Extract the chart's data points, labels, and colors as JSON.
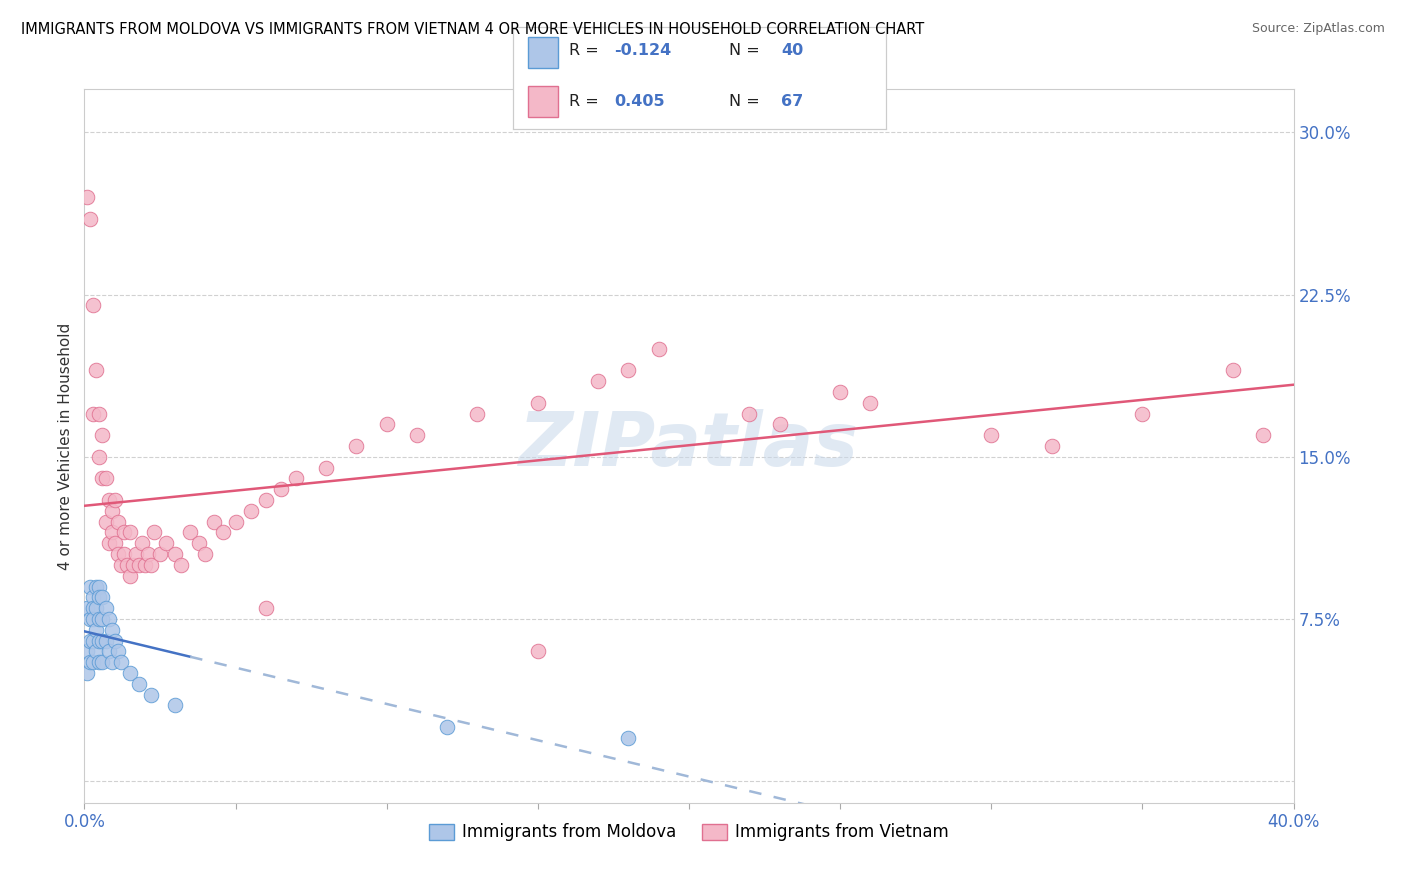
{
  "title": "IMMIGRANTS FROM MOLDOVA VS IMMIGRANTS FROM VIETNAM 4 OR MORE VEHICLES IN HOUSEHOLD CORRELATION CHART",
  "source": "Source: ZipAtlas.com",
  "ylabel": "4 or more Vehicles in Household",
  "moldova_color": "#aec6e8",
  "moldova_edge_color": "#5b9bd5",
  "vietnam_color": "#f4b8c8",
  "vietnam_edge_color": "#e07090",
  "moldova_line_color": "#4472c4",
  "vietnam_line_color": "#e05878",
  "moldova_dash_color": "#a0b8d8",
  "watermark": "ZIPatlas",
  "R_moldova": -0.124,
  "N_moldova": 40,
  "R_vietnam": 0.405,
  "N_vietnam": 67,
  "xmin": 0.0,
  "xmax": 0.4,
  "ymin": -0.01,
  "ymax": 0.32,
  "moldova_scatter_x": [
    0.001,
    0.001,
    0.001,
    0.002,
    0.002,
    0.002,
    0.002,
    0.003,
    0.003,
    0.003,
    0.003,
    0.003,
    0.004,
    0.004,
    0.004,
    0.004,
    0.005,
    0.005,
    0.005,
    0.005,
    0.005,
    0.006,
    0.006,
    0.006,
    0.006,
    0.007,
    0.007,
    0.008,
    0.008,
    0.009,
    0.009,
    0.01,
    0.011,
    0.012,
    0.015,
    0.018,
    0.022,
    0.03,
    0.12,
    0.18
  ],
  "moldova_scatter_y": [
    0.08,
    0.06,
    0.05,
    0.09,
    0.075,
    0.065,
    0.055,
    0.085,
    0.08,
    0.075,
    0.065,
    0.055,
    0.09,
    0.08,
    0.07,
    0.06,
    0.09,
    0.085,
    0.075,
    0.065,
    0.055,
    0.085,
    0.075,
    0.065,
    0.055,
    0.08,
    0.065,
    0.075,
    0.06,
    0.07,
    0.055,
    0.065,
    0.06,
    0.055,
    0.05,
    0.045,
    0.04,
    0.035,
    0.025,
    0.02
  ],
  "vietnam_scatter_x": [
    0.001,
    0.002,
    0.003,
    0.003,
    0.004,
    0.005,
    0.005,
    0.006,
    0.006,
    0.007,
    0.007,
    0.008,
    0.008,
    0.009,
    0.009,
    0.01,
    0.01,
    0.011,
    0.011,
    0.012,
    0.013,
    0.013,
    0.014,
    0.015,
    0.015,
    0.016,
    0.017,
    0.018,
    0.019,
    0.02,
    0.021,
    0.022,
    0.023,
    0.025,
    0.027,
    0.03,
    0.032,
    0.035,
    0.038,
    0.04,
    0.043,
    0.046,
    0.05,
    0.055,
    0.06,
    0.065,
    0.07,
    0.08,
    0.09,
    0.1,
    0.11,
    0.13,
    0.15,
    0.17,
    0.18,
    0.19,
    0.22,
    0.23,
    0.25,
    0.26,
    0.3,
    0.32,
    0.35,
    0.38,
    0.39,
    0.15,
    0.06
  ],
  "vietnam_scatter_y": [
    0.27,
    0.26,
    0.22,
    0.17,
    0.19,
    0.15,
    0.17,
    0.14,
    0.16,
    0.12,
    0.14,
    0.11,
    0.13,
    0.115,
    0.125,
    0.11,
    0.13,
    0.105,
    0.12,
    0.1,
    0.115,
    0.105,
    0.1,
    0.095,
    0.115,
    0.1,
    0.105,
    0.1,
    0.11,
    0.1,
    0.105,
    0.1,
    0.115,
    0.105,
    0.11,
    0.105,
    0.1,
    0.115,
    0.11,
    0.105,
    0.12,
    0.115,
    0.12,
    0.125,
    0.13,
    0.135,
    0.14,
    0.145,
    0.155,
    0.165,
    0.16,
    0.17,
    0.175,
    0.185,
    0.19,
    0.2,
    0.17,
    0.165,
    0.18,
    0.175,
    0.16,
    0.155,
    0.17,
    0.19,
    0.16,
    0.06,
    0.08
  ]
}
